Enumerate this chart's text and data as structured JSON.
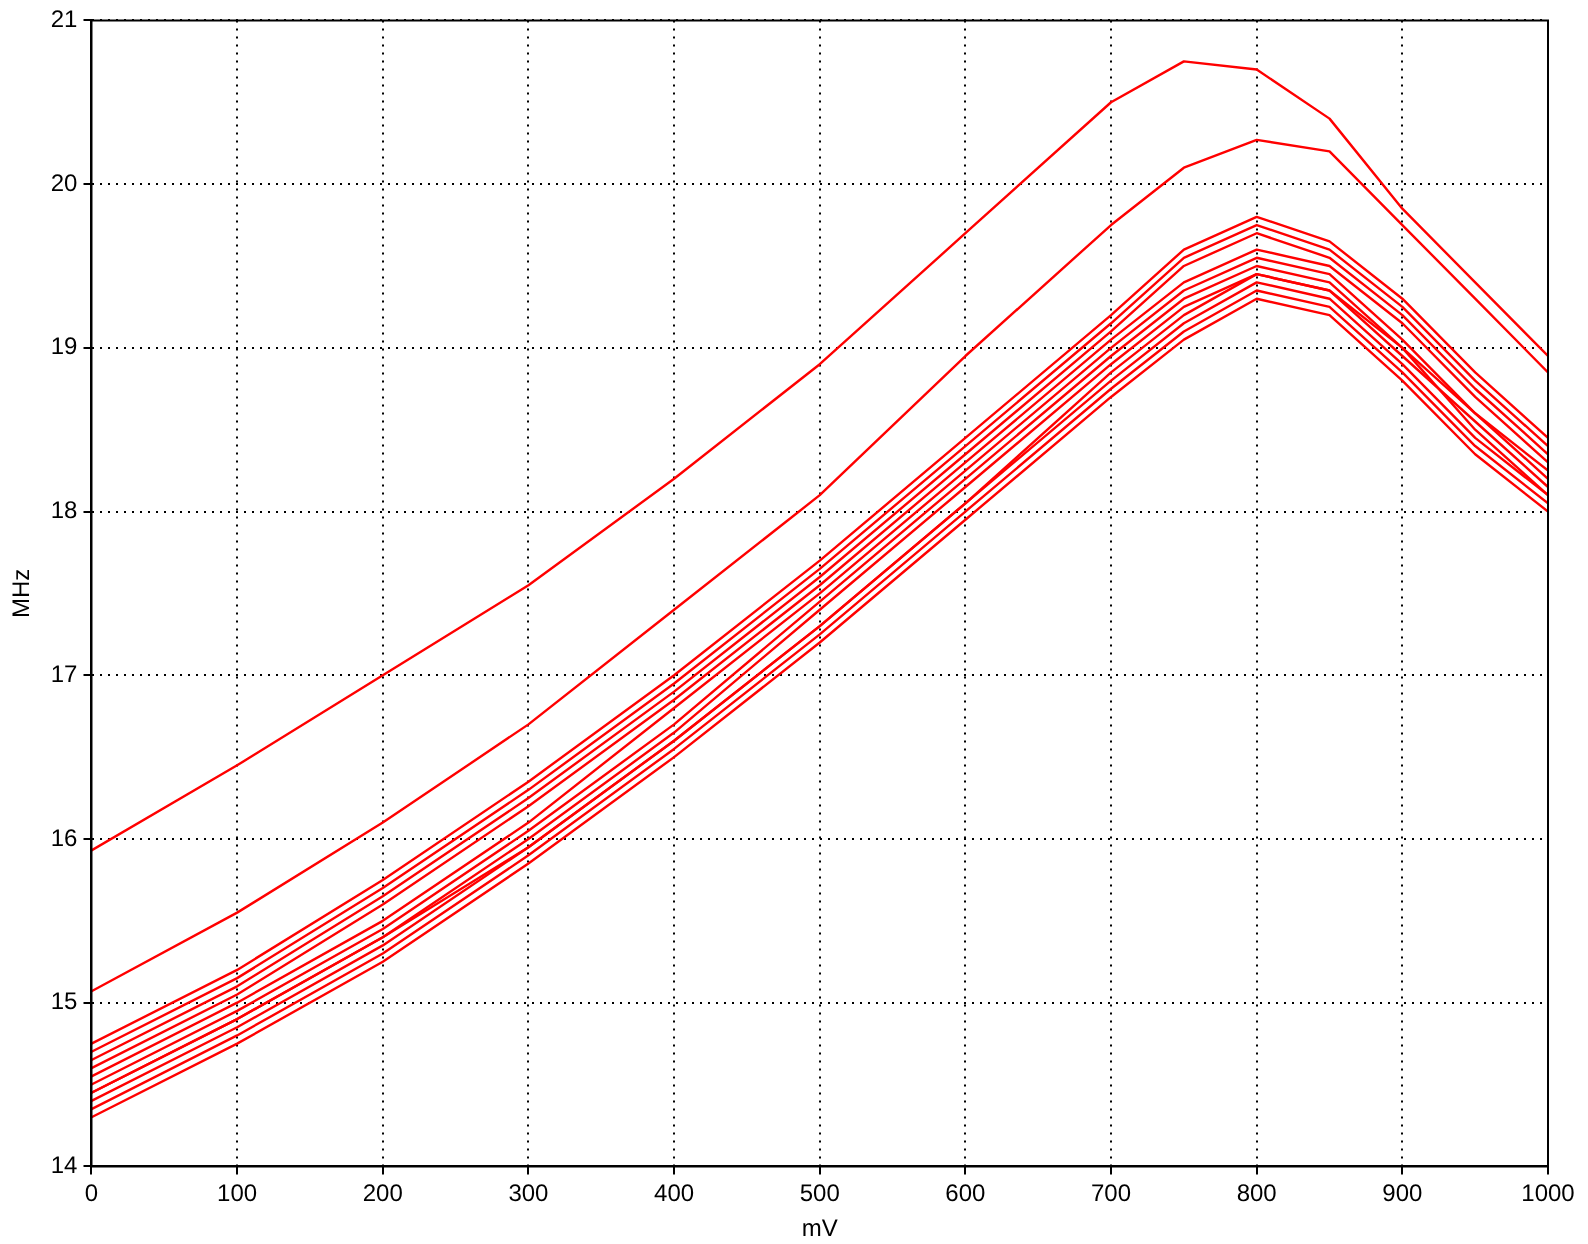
{
  "chart_data": {
    "type": "line",
    "xlabel": "mV",
    "ylabel": "MHz",
    "x": [
      0,
      100,
      200,
      300,
      400,
      500,
      600,
      700,
      750,
      800,
      850,
      900,
      950,
      1000
    ],
    "series": [
      {
        "color": "#ff0000",
        "values": [
          15.93,
          16.45,
          17.0,
          17.55,
          18.2,
          18.9,
          19.7,
          20.5,
          20.75,
          20.7,
          20.4,
          19.85,
          19.4,
          18.95
        ]
      },
      {
        "color": "#ff0000",
        "values": [
          15.07,
          15.55,
          16.1,
          16.7,
          17.4,
          18.1,
          18.95,
          19.75,
          20.1,
          20.27,
          20.2,
          19.75,
          19.3,
          18.85
        ]
      },
      {
        "color": "#ff0000",
        "values": [
          14.75,
          15.2,
          15.75,
          16.35,
          17.0,
          17.7,
          18.45,
          19.2,
          19.6,
          19.8,
          19.65,
          19.3,
          18.85,
          18.45
        ]
      },
      {
        "color": "#ff0000",
        "values": [
          14.65,
          15.1,
          15.65,
          16.25,
          16.9,
          17.6,
          18.35,
          19.1,
          19.5,
          19.7,
          19.55,
          19.2,
          18.75,
          18.35
        ]
      },
      {
        "color": "#ff0000",
        "values": [
          14.6,
          15.05,
          15.6,
          16.2,
          16.85,
          17.55,
          18.3,
          19.05,
          19.4,
          19.6,
          19.5,
          19.15,
          18.7,
          18.3
        ]
      },
      {
        "color": "#ff0000",
        "values": [
          14.55,
          15.0,
          15.5,
          16.1,
          16.8,
          17.5,
          18.25,
          19.0,
          19.35,
          19.55,
          19.45,
          19.05,
          18.6,
          18.25
        ]
      },
      {
        "color": "#ff0000",
        "values": [
          14.5,
          14.95,
          15.45,
          16.05,
          16.7,
          17.45,
          18.2,
          18.95,
          19.3,
          19.5,
          19.4,
          19.0,
          18.6,
          18.2
        ]
      },
      {
        "color": "#ff0000",
        "values": [
          14.45,
          14.9,
          15.4,
          16.0,
          16.65,
          17.4,
          18.15,
          18.9,
          19.25,
          19.45,
          19.35,
          18.95,
          18.55,
          18.15
        ]
      },
      {
        "color": "#ff0000",
        "values": [
          14.45,
          14.9,
          15.4,
          15.95,
          16.6,
          17.3,
          18.05,
          18.85,
          19.2,
          19.45,
          19.35,
          19.0,
          18.5,
          18.1
        ]
      },
      {
        "color": "#ff0000",
        "values": [
          14.4,
          14.85,
          15.35,
          15.95,
          16.6,
          17.3,
          18.05,
          18.8,
          19.15,
          19.4,
          19.3,
          18.9,
          18.45,
          18.1
        ]
      },
      {
        "color": "#ff0000",
        "values": [
          14.35,
          14.8,
          15.3,
          15.9,
          16.55,
          17.25,
          18.0,
          18.75,
          19.1,
          19.35,
          19.25,
          18.85,
          18.4,
          18.05
        ]
      },
      {
        "color": "#ff0000",
        "values": [
          14.3,
          14.75,
          15.25,
          15.85,
          16.5,
          17.2,
          17.95,
          18.7,
          19.05,
          19.3,
          19.2,
          18.8,
          18.35,
          18.0
        ]
      },
      {
        "color": "#ff0000",
        "values": [
          14.7,
          15.15,
          15.7,
          16.3,
          16.95,
          17.65,
          18.4,
          19.15,
          19.55,
          19.75,
          19.6,
          19.25,
          18.8,
          18.4
        ]
      }
    ],
    "xlim": [
      0,
      1000
    ],
    "xticks": [
      0,
      100,
      200,
      300,
      400,
      500,
      600,
      700,
      800,
      900,
      1000
    ],
    "ylim": [
      14,
      21
    ],
    "yticks": [
      14,
      15,
      16,
      17,
      18,
      19,
      20,
      21
    ],
    "grid": true
  }
}
